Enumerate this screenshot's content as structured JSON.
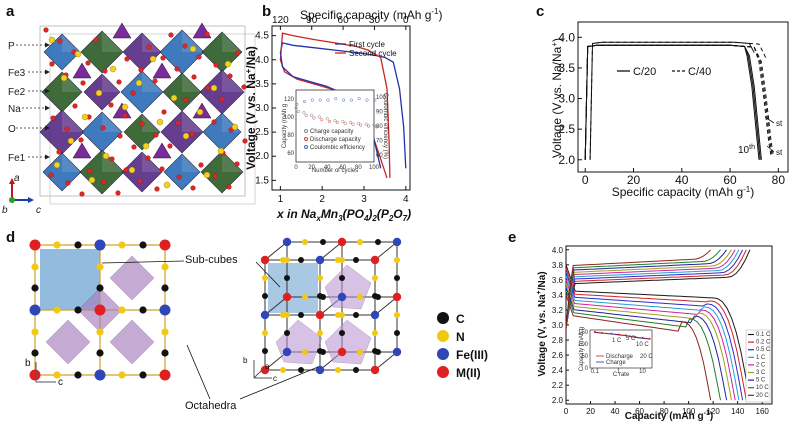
{
  "panel_labels": {
    "a": "a",
    "b": "b",
    "c": "c",
    "d": "d",
    "e": "e"
  },
  "panel_a": {
    "labels": [
      "P",
      "Fe3",
      "Fe2",
      "Na",
      "O",
      "Fe1"
    ],
    "axes": {
      "a": "a",
      "b": "b",
      "c": "c"
    }
  },
  "panel_b": {
    "top_axis_title": "Specific capacity (mAh g",
    "top_axis_title_sup": "-1",
    "top_axis_title_end": ")",
    "y_title": "Voltage (V vs. Na",
    "y_title_sup": "+",
    "y_title_end": "/Na)",
    "x_title_main": "x in Na",
    "x_title_sub1": "x",
    "x_title_mid": "Mn",
    "x_title_sub2": "3",
    "x_title_mid2": "(PO",
    "x_title_sub3": "4",
    "x_title_mid3": ")",
    "x_title_sub4": "2",
    "x_title_mid4": "(P",
    "x_title_sub5": "2",
    "x_title_mid5": "O",
    "x_title_sub6": "7",
    "x_title_end": ")",
    "legend": [
      "First cycle",
      "Second cycle"
    ],
    "inset": {
      "ylabel_left": "Capacity (mAh g",
      "ylabel_right": "Coulombic efficiency (%)",
      "xlabel": "Number of cycles",
      "legend": [
        "Charge capacity",
        "Discharge capacity",
        "Coulombic efficiency"
      ]
    }
  },
  "panel_c": {
    "y_title": "Voltage (V vs. Na/Na",
    "y_title_sup": "+",
    "y_title_end": ")",
    "x_title": "Specific capacity (mAh g",
    "x_title_sup": "-1",
    "x_title_end": ")",
    "legend": [
      "C/20",
      "C/40"
    ],
    "annot_10th": "10",
    "annot_10th_sup": "th",
    "annot_st1": "st",
    "annot_st2": "st"
  },
  "panel_d": {
    "callout_top": "Sub-cubes",
    "callout_bottom": "Octahedra",
    "legend": [
      {
        "symbol": "C",
        "color": "#111111"
      },
      {
        "symbol": "N",
        "color": "#f2c811"
      },
      {
        "symbol": "Fe(III)",
        "color": "#2f46b8"
      },
      {
        "symbol": "M(II)",
        "color": "#e02020"
      }
    ],
    "axes_left": {
      "b": "b",
      "c": "c"
    },
    "axes_right": {
      "b": "b",
      "a": "a",
      "c": "c"
    }
  },
  "panel_e": {
    "y_title": "Voltage (V, vs. Na",
    "y_title_sup": "+",
    "y_title_end": "/Na)",
    "x_title": "Capacity (mAh g",
    "x_title_sup": "-1",
    "x_title_end": ")",
    "inset_ylabel": "Capacity (mAh g",
    "inset_xlabel": "C rate",
    "inset_legend": [
      "Discharge",
      "Charge"
    ],
    "inset_rates": [
      "1 C",
      "5 C",
      "10 C",
      "20 C"
    ]
  },
  "chart_data": [
    {
      "panel": "b",
      "type": "line",
      "xlabel": "x in NaxMn3(PO4)2(P2O7)",
      "ylabel": "Voltage (V vs. Na+/Na)",
      "x_ticks": [
        1,
        2,
        3,
        4
      ],
      "y_ticks": [
        1.5,
        2.0,
        2.5,
        3.0,
        3.5,
        4.0,
        4.5
      ],
      "top_ticks": [
        120,
        90,
        60,
        30,
        0
      ],
      "xlim": [
        0.8,
        4.1
      ],
      "ylim": [
        1.3,
        4.7
      ],
      "series": [
        {
          "name": "First cycle",
          "color": "#2233aa",
          "x": [
            1.0,
            1.05,
            1.3,
            1.8,
            2.3,
            2.8,
            3.2,
            3.5,
            3.7,
            3.85,
            3.95,
            4.0
          ],
          "y": [
            4.15,
            4.35,
            4.3,
            4.25,
            4.2,
            4.15,
            4.1,
            4.05,
            3.95,
            3.4,
            2.6,
            1.75
          ]
        },
        {
          "name": "Second cycle",
          "color": "#cc2222",
          "x": [
            1.0,
            1.05,
            1.3,
            1.8,
            2.3,
            2.8,
            3.1,
            3.4,
            3.55,
            3.6,
            3.62
          ],
          "y": [
            4.0,
            4.55,
            4.5,
            4.42,
            4.35,
            4.28,
            4.2,
            4.05,
            3.4,
            2.3,
            1.55
          ]
        },
        {
          "name": "",
          "color": "#cc2222",
          "x": [
            3.55,
            3.3,
            3.0,
            2.6,
            2.2,
            1.8,
            1.4,
            1.1,
            1.0
          ],
          "y": [
            1.55,
            2.2,
            2.9,
            3.25,
            3.4,
            3.5,
            3.6,
            3.75,
            4.0
          ]
        },
        {
          "name": "",
          "color": "#2233aa",
          "x": [
            3.4,
            3.2,
            2.9,
            2.5,
            2.1,
            1.7,
            1.3,
            1.05,
            1.0
          ],
          "y": [
            1.75,
            2.5,
            3.0,
            3.3,
            3.45,
            3.55,
            3.65,
            3.85,
            4.15
          ]
        }
      ],
      "inset": {
        "x_ticks": [
          0,
          20,
          40,
          60,
          80,
          100
        ],
        "y_ticks_left": [
          60,
          80,
          100,
          120
        ],
        "y_ticks_right": [
          60,
          70,
          80,
          90,
          100
        ],
        "charge": [
          110,
          105,
          102,
          100,
          98,
          96,
          95,
          94,
          93,
          92,
          91
        ],
        "discharge": [
          106,
          102,
          99,
          97,
          95,
          94,
          93,
          92,
          91,
          90,
          89
        ],
        "efficiency": [
          95,
          97,
          98,
          98,
          98,
          99,
          98,
          98,
          99,
          98,
          98
        ]
      }
    },
    {
      "panel": "c",
      "type": "line",
      "xlabel": "Specific capacity (mAh g-1)",
      "ylabel": "Voltage (V vs. Na/Na+)",
      "x_ticks": [
        0,
        20,
        40,
        60,
        80
      ],
      "y_ticks": [
        2.0,
        2.5,
        3.0,
        3.5,
        4.0
      ],
      "xlim": [
        -3,
        84
      ],
      "ylim": [
        1.8,
        4.25
      ],
      "series": [
        {
          "name": "C/20",
          "dash": "solid",
          "x": [
            0,
            1,
            5,
            20,
            40,
            60,
            66,
            68,
            70,
            72,
            73
          ],
          "y": [
            2.0,
            3.85,
            3.87,
            3.87,
            3.87,
            3.87,
            3.85,
            3.7,
            3.2,
            2.4,
            2.0
          ]
        },
        {
          "name": "C/40",
          "dash": "dashed",
          "x": [
            0,
            1,
            5,
            20,
            40,
            60,
            70,
            73,
            75,
            77,
            78
          ],
          "y": [
            2.0,
            3.85,
            3.87,
            3.87,
            3.87,
            3.87,
            3.84,
            3.6,
            3.0,
            2.3,
            2.05
          ]
        }
      ]
    },
    {
      "panel": "e",
      "type": "line",
      "xlabel": "Capacity (mAh g-1)",
      "ylabel": "Voltage (V, vs. Na+/Na)",
      "x_ticks": [
        0,
        20,
        40,
        60,
        80,
        100,
        120,
        140,
        160
      ],
      "y_ticks": [
        2.0,
        2.2,
        2.4,
        2.6,
        2.8,
        3.0,
        3.2,
        3.4,
        3.6,
        3.8,
        4.0
      ],
      "xlim": [
        0,
        168
      ],
      "ylim": [
        1.95,
        4.05
      ],
      "series": [
        {
          "name": "0.1 C",
          "color": "#1a1a1a",
          "cap": 150
        },
        {
          "name": "0.2 C",
          "color": "#d62020",
          "cap": 147
        },
        {
          "name": "0.5 C",
          "color": "#2a2ad0",
          "cap": 144
        },
        {
          "name": "1 C",
          "color": "#20a0d0",
          "cap": 141
        },
        {
          "name": "2 C",
          "color": "#d020a0",
          "cap": 138
        },
        {
          "name": "3 C",
          "color": "#a0a020",
          "cap": 135
        },
        {
          "name": "5 C",
          "color": "#2020a0",
          "cap": 131
        },
        {
          "name": "10 C",
          "color": "#208020",
          "cap": 126
        },
        {
          "name": "20 C",
          "color": "#902020",
          "cap": 118
        }
      ],
      "inset": {
        "x_ticks": [
          0.1,
          1,
          10
        ],
        "y_ticks": [
          0,
          50,
          100,
          150
        ]
      }
    }
  ]
}
